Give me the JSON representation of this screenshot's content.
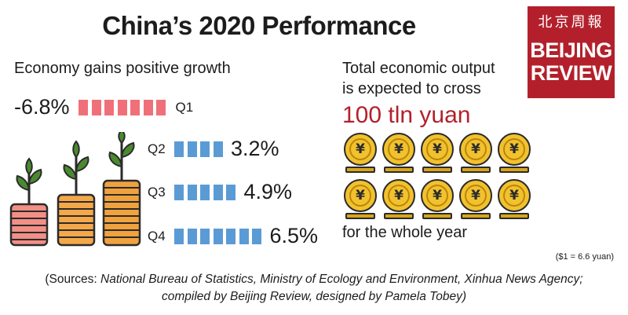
{
  "title": "China’s 2020 Performance",
  "logo": {
    "chinese": "北京周報",
    "line1": "BEIJING",
    "line2": "REVIEW"
  },
  "economy_heading": "Economy gains positive growth",
  "output_heading_line1": "Total economic output",
  "output_heading_line2": "is expected to cross",
  "output_value": "100 tln yuan",
  "output_footer": "for the whole year",
  "exchange_note": "($1 = 6.6 yuan)",
  "coin_symbol": "¥",
  "sources_line1_prefix": "(Sources: ",
  "sources_line1_italic": "National Bureau of Statistics, Ministry of Ecology and Environment, Xinhua News Agency;",
  "sources_line2": "compiled by Beijing Review, designed by Pamela Tobey)",
  "colors": {
    "negative": "#f07079",
    "positive": "#5b9bd5",
    "accent": "#b3202b",
    "coin": "#f2c12e"
  },
  "chart_data": {
    "type": "bar",
    "title": "Economy gains positive growth",
    "categories": [
      "Q1",
      "Q2",
      "Q3",
      "Q4"
    ],
    "values": [
      -6.8,
      3.2,
      4.9,
      6.5
    ],
    "value_labels": [
      "-6.8%",
      "3.2%",
      "4.9%",
      "6.5%"
    ],
    "segments_shown": [
      7,
      4,
      5,
      7
    ],
    "unit": "%"
  }
}
